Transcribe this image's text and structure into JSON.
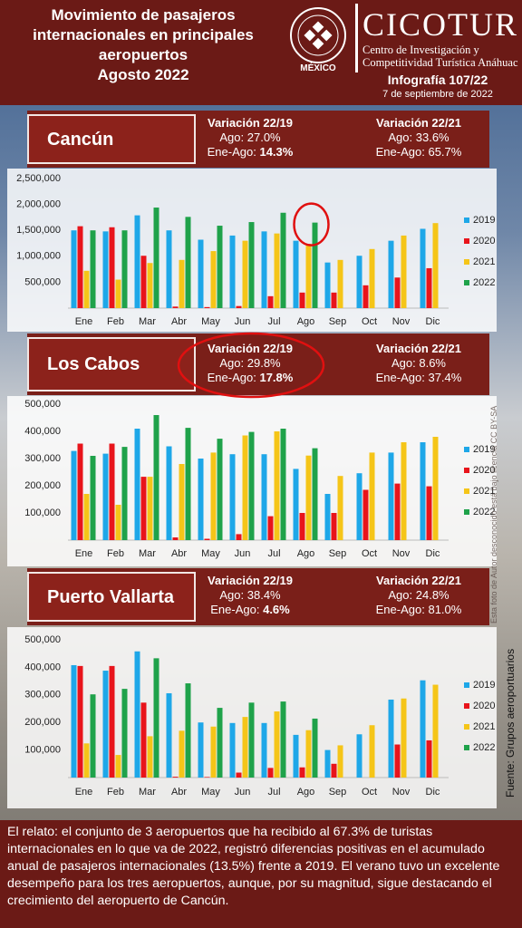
{
  "header": {
    "title_lines": [
      "Movimiento de pasajeros",
      "internacionales en principales",
      "aeropuertos",
      "Agosto 2022"
    ],
    "logo_text": "MÉXICO",
    "brand": "CICOTUR",
    "brand_lines": [
      "Centro de Investigación y",
      "Competitividad Turística Anáhuac"
    ],
    "issue": "Infografía 107/22",
    "date": "7 de septiembre de 2022"
  },
  "source": "Fuente: Grupos aeroportuarios",
  "photo_credit": "Esta foto de Autor desconocido está bajo licencia CC BY-SA",
  "footer": {
    "text": "El relato: el conjunto de 3 aeropuertos que ha recibido al 67.3% de turistas internacionales en lo que va de 2022, registró diferencias positivas en el acumulado anual de pasajeros internacionales (13.5%) frente a 2019. El verano tuvo un excelente desempeño para los tres aeropuertos, aunque, por su magnitud, sigue destacando el crecimiento del aeropuerto de Cancún."
  },
  "chart_data": [
    {
      "type": "bar",
      "title": "Cancún",
      "variations": [
        {
          "heading": "Variación 22/19",
          "ago": "Ago: 27.0%",
          "ene_ago_label": "Ene-Ago:",
          "ene_ago": "14.3%",
          "ene_ago_bold": true
        },
        {
          "heading": "Variación 22/21",
          "ago": "Ago: 33.6%",
          "ene_ago_label": "Ene-Ago:",
          "ene_ago": "65.7%",
          "ene_ago_bold": false
        }
      ],
      "categories": [
        "Ene",
        "Feb",
        "Mar",
        "Abr",
        "May",
        "Jun",
        "Jul",
        "Ago",
        "Sep",
        "Oct",
        "Nov",
        "Dic"
      ],
      "series": [
        {
          "name": "2019",
          "color": "#1ea7e8",
          "values": [
            1500000,
            1480000,
            1790000,
            1500000,
            1320000,
            1400000,
            1480000,
            1300000,
            880000,
            1010000,
            1300000,
            1530000
          ]
        },
        {
          "name": "2020",
          "color": "#e8141b",
          "values": [
            1580000,
            1560000,
            1010000,
            30000,
            20000,
            40000,
            230000,
            300000,
            300000,
            440000,
            590000,
            770000
          ]
        },
        {
          "name": "2021",
          "color": "#f5c518",
          "values": [
            720000,
            550000,
            870000,
            930000,
            1100000,
            1300000,
            1440000,
            1240000,
            930000,
            1140000,
            1400000,
            1640000
          ]
        },
        {
          "name": "2022",
          "color": "#1fa24a",
          "values": [
            1500000,
            1500000,
            1940000,
            1760000,
            1590000,
            1660000,
            1840000,
            1650000,
            null,
            null,
            null,
            null
          ]
        }
      ],
      "ylim": [
        0,
        2500000
      ],
      "yticks": [
        {
          "value": 500000,
          "label": "500,000"
        },
        {
          "value": 1000000,
          "label": "1,000,000"
        },
        {
          "value": 1500000,
          "label": "1,500,000"
        },
        {
          "value": 2000000,
          "label": "2,000,000"
        },
        {
          "value": 2500000,
          "label": "2,500,000"
        }
      ],
      "grid": false,
      "legend": "right"
    },
    {
      "type": "bar",
      "title": "Los Cabos",
      "variations": [
        {
          "heading": "Variación 22/19",
          "ago": "Ago: 29.8%",
          "ene_ago_label": "Ene-Ago:",
          "ene_ago": "17.8%",
          "ene_ago_bold": true
        },
        {
          "heading": "Variación 22/21",
          "ago": "Ago: 8.6%",
          "ene_ago_label": "Ene-Ago:",
          "ene_ago": "37.4%",
          "ene_ago_bold": false
        }
      ],
      "categories": [
        "Ene",
        "Feb",
        "Mar",
        "Abr",
        "May",
        "Jun",
        "Jul",
        "Ago",
        "Sep",
        "Oct",
        "Nov",
        "Dic"
      ],
      "series": [
        {
          "name": "2019",
          "color": "#1ea7e8",
          "values": [
            328000,
            318000,
            410000,
            345000,
            300000,
            316000,
            316000,
            262000,
            170000,
            246000,
            322000,
            360000
          ]
        },
        {
          "name": "2020",
          "color": "#e8141b",
          "values": [
            355000,
            355000,
            233000,
            10000,
            5000,
            22000,
            88000,
            100000,
            100000,
            185000,
            208000,
            198000
          ]
        },
        {
          "name": "2021",
          "color": "#f5c518",
          "values": [
            170000,
            130000,
            233000,
            280000,
            322000,
            385000,
            400000,
            311000,
            236000,
            322000,
            360000,
            380000
          ]
        },
        {
          "name": "2022",
          "color": "#1fa24a",
          "values": [
            310000,
            343000,
            460000,
            413000,
            373000,
            398000,
            410000,
            338000,
            null,
            null,
            null,
            null
          ]
        }
      ],
      "ylim": [
        0,
        500000
      ],
      "yticks": [
        {
          "value": 100000,
          "label": "100,000"
        },
        {
          "value": 200000,
          "label": "200,000"
        },
        {
          "value": 300000,
          "label": "300,000"
        },
        {
          "value": 400000,
          "label": "400,000"
        },
        {
          "value": 500000,
          "label": "500,000"
        }
      ],
      "grid": false,
      "legend": "right"
    },
    {
      "type": "bar",
      "title": "Puerto Vallarta",
      "variations": [
        {
          "heading": "Variación 22/19",
          "ago": "Ago: 38.4%",
          "ene_ago_label": "Ene-Ago:",
          "ene_ago": "4.6%",
          "ene_ago_bold": true
        },
        {
          "heading": "Variación 22/21",
          "ago": "Ago: 24.8%",
          "ene_ago_label": "Ene-Ago:",
          "ene_ago": "81.0%",
          "ene_ago_bold": false
        }
      ],
      "categories": [
        "Ene",
        "Feb",
        "Mar",
        "Abr",
        "May",
        "Jun",
        "Jul",
        "Ago",
        "Sep",
        "Oct",
        "Nov",
        "Dic"
      ],
      "series": [
        {
          "name": "2019",
          "color": "#1ea7e8",
          "values": [
            408000,
            388000,
            458000,
            306000,
            200000,
            198000,
            198000,
            155000,
            100000,
            157000,
            283000,
            353000
          ]
        },
        {
          "name": "2020",
          "color": "#e8141b",
          "values": [
            405000,
            405000,
            272000,
            3000,
            2000,
            18000,
            35000,
            37000,
            50000,
            null,
            120000,
            135000
          ]
        },
        {
          "name": "2021",
          "color": "#f5c518",
          "values": [
            124000,
            82000,
            150000,
            170000,
            185000,
            220000,
            240000,
            172000,
            117000,
            190000,
            287000,
            337000
          ]
        },
        {
          "name": "2022",
          "color": "#1fa24a",
          "values": [
            302000,
            322000,
            433000,
            342000,
            253000,
            272000,
            276000,
            214000,
            null,
            null,
            null,
            null
          ]
        }
      ],
      "ylim": [
        0,
        500000
      ],
      "yticks": [
        {
          "value": 100000,
          "label": "100,000"
        },
        {
          "value": 200000,
          "label": "200,000"
        },
        {
          "value": 300000,
          "label": "300,000"
        },
        {
          "value": 400000,
          "label": "400,000"
        },
        {
          "value": 500000,
          "label": "500,000"
        }
      ],
      "grid": false,
      "legend": "right"
    }
  ]
}
